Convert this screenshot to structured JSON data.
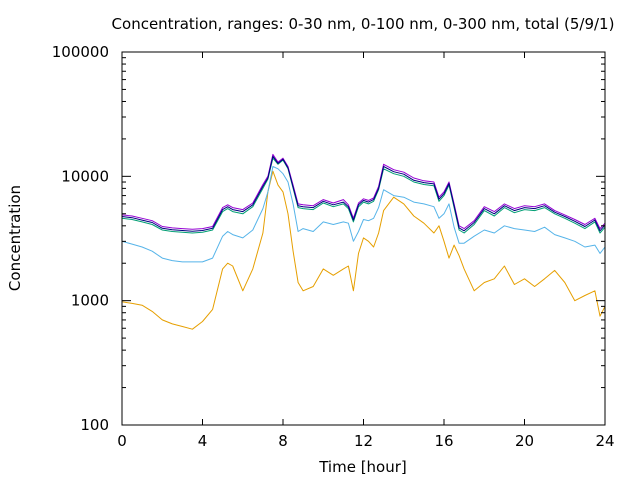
{
  "chart_data": {
    "type": "line",
    "title": "Concentration, ranges: 0-30 nm, 0-100 nm, 0-300 nm, total (5/9/1)",
    "xlabel": "Time [hour]",
    "ylabel": "Concentration",
    "xlim": [
      0,
      24
    ],
    "ylim": [
      100,
      100000
    ],
    "y_scale": "log",
    "grid": false,
    "legend": "none",
    "x_ticks": [
      0,
      4,
      8,
      12,
      16,
      20,
      24
    ],
    "x_tick_labels": [
      "0",
      "4",
      "8",
      "12",
      "16",
      "20",
      "24"
    ],
    "y_ticks": [
      100,
      1000,
      10000,
      100000
    ],
    "y_tick_labels": [
      "100",
      "1000",
      "10000",
      "100000"
    ],
    "x": [
      0,
      0.5,
      1,
      1.5,
      2,
      2.5,
      3,
      3.5,
      4,
      4.5,
      5,
      5.25,
      5.5,
      6,
      6.5,
      7,
      7.25,
      7.5,
      7.75,
      8,
      8.25,
      8.5,
      8.75,
      9,
      9.5,
      10,
      10.5,
      11,
      11.25,
      11.5,
      11.75,
      12,
      12.25,
      12.5,
      12.75,
      13,
      13.5,
      14,
      14.5,
      15,
      15.5,
      15.75,
      16,
      16.25,
      16.5,
      16.75,
      17,
      17.5,
      18,
      18.5,
      19,
      19.5,
      20,
      20.5,
      21,
      21.5,
      22,
      22.5,
      23,
      23.5,
      23.75,
      24
    ],
    "series_colors": [
      "#e69f00",
      "#56b4e9",
      "#009e73",
      "#9400d3",
      "#000080"
    ],
    "series": [
      {
        "values": [
          980,
          950,
          920,
          820,
          700,
          650,
          620,
          590,
          680,
          850,
          1800,
          2000,
          1900,
          1200,
          1800,
          3500,
          7500,
          11000,
          8500,
          7500,
          5000,
          2500,
          1400,
          1200,
          1300,
          1800,
          1600,
          1800,
          1900,
          1200,
          2400,
          3200,
          3000,
          2700,
          3500,
          5300,
          6800,
          6000,
          4800,
          4200,
          3500,
          4000,
          3000,
          2200,
          2800,
          2300,
          1800,
          1200,
          1400,
          1500,
          1900,
          1350,
          1500,
          1300,
          1500,
          1750,
          1400,
          1000,
          1100,
          1200,
          750,
          900
        ]
      },
      {
        "values": [
          3000,
          2850,
          2700,
          2500,
          2200,
          2100,
          2050,
          2050,
          2050,
          2200,
          3300,
          3600,
          3400,
          3200,
          3700,
          5500,
          7500,
          12000,
          11500,
          10500,
          9000,
          6000,
          3600,
          3800,
          3600,
          4300,
          4100,
          4300,
          4200,
          3000,
          3600,
          4500,
          4400,
          4600,
          5600,
          7800,
          7000,
          6800,
          6200,
          6000,
          5700,
          4600,
          5000,
          6000,
          3900,
          2900,
          2900,
          3300,
          3700,
          3500,
          4000,
          3800,
          3700,
          3600,
          3900,
          3400,
          3200,
          3000,
          2700,
          2800,
          2400,
          2700
        ]
      },
      {
        "values": [
          4600,
          4500,
          4300,
          4100,
          3700,
          3600,
          3550,
          3500,
          3550,
          3700,
          5200,
          5500,
          5200,
          5000,
          5700,
          8000,
          9500,
          14000,
          12500,
          13500,
          11500,
          8000,
          5600,
          5500,
          5400,
          6100,
          5700,
          6000,
          5500,
          4300,
          5700,
          6200,
          6000,
          6300,
          7800,
          11500,
          10500,
          10000,
          9000,
          8600,
          8400,
          6300,
          7000,
          8500,
          5600,
          3700,
          3500,
          4100,
          5300,
          4800,
          5600,
          5100,
          5400,
          5300,
          5600,
          5000,
          4600,
          4200,
          3800,
          4300,
          3500,
          3900
        ]
      },
      {
        "values": [
          4900,
          4800,
          4600,
          4400,
          3950,
          3850,
          3800,
          3750,
          3800,
          3950,
          5600,
          5900,
          5600,
          5400,
          6100,
          8600,
          10000,
          15000,
          13000,
          14000,
          12000,
          8500,
          6000,
          5900,
          5800,
          6500,
          6100,
          6500,
          5900,
          4600,
          6100,
          6600,
          6400,
          6700,
          8300,
          12500,
          11300,
          10800,
          9700,
          9200,
          9000,
          6800,
          7500,
          9000,
          6000,
          4000,
          3800,
          4400,
          5700,
          5200,
          6000,
          5500,
          5800,
          5700,
          6000,
          5300,
          4900,
          4500,
          4100,
          4600,
          3800,
          4200
        ]
      },
      {
        "values": [
          4750,
          4650,
          4450,
          4250,
          3820,
          3720,
          3670,
          3620,
          3670,
          3820,
          5400,
          5700,
          5400,
          5200,
          5900,
          8300,
          9700,
          14500,
          12700,
          13700,
          11700,
          8200,
          5800,
          5700,
          5600,
          6300,
          5900,
          6200,
          5700,
          4450,
          5900,
          6400,
          6200,
          6500,
          8000,
          12000,
          10900,
          10400,
          9300,
          8900,
          8700,
          6550,
          7250,
          8750,
          5800,
          3850,
          3650,
          4250,
          5500,
          5000,
          5800,
          5300,
          5600,
          5500,
          5800,
          5150,
          4750,
          4350,
          3950,
          4450,
          3650,
          4050
        ]
      }
    ]
  }
}
